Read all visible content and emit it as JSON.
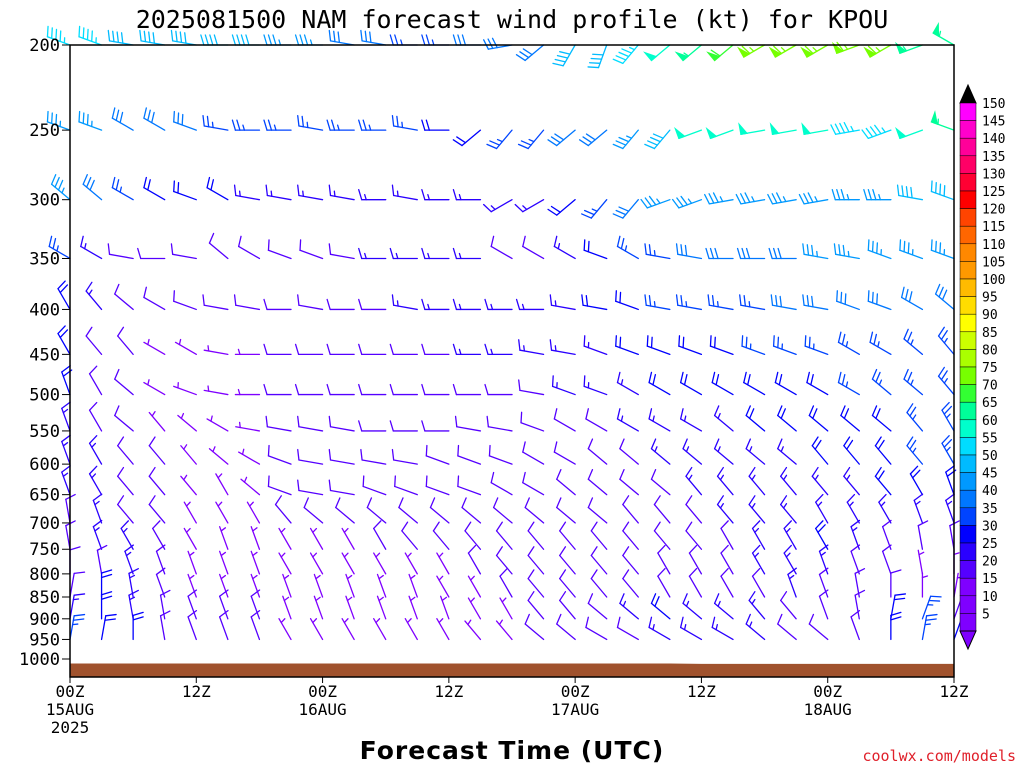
{
  "title": "2025081500 NAM forecast wind profile (kt) for KPOU",
  "xlabel": "Forecast Time (UTC)",
  "credit": "coolwx.com/models",
  "colors": {
    "ground": "#a0522d",
    "frame": "#000000",
    "scale": [
      "#7f00ff",
      "#5500ff",
      "#2a00ff",
      "#0000ff",
      "#0044ff",
      "#0077ff",
      "#0099ff",
      "#00bbff",
      "#00ddff",
      "#00ffcc",
      "#00ff99",
      "#33ff33",
      "#77ff00",
      "#aaff00",
      "#ccff00",
      "#ffff00",
      "#ffdd00",
      "#ffbb00",
      "#ff9900",
      "#ff8800",
      "#ff6600",
      "#ff4400",
      "#ff0000",
      "#ff0033",
      "#ff0066",
      "#ff0099",
      "#ff00cc",
      "#ff00ff"
    ]
  },
  "chart_data": {
    "type": "wind_barbs",
    "units": "kt",
    "y_axis": {
      "label": "",
      "scale": "log-pressure",
      "range": [
        1000,
        200
      ],
      "ticks": [
        "200",
        "250",
        "300",
        "350",
        "400",
        "450",
        "500",
        "550",
        "600",
        "650",
        "700",
        "750",
        "800",
        "850",
        "900",
        "950",
        "1000"
      ]
    },
    "x_axis": {
      "range_hours": [
        0,
        84
      ],
      "ticks": [
        {
          "hour": 0,
          "lines": [
            "00Z",
            "15AUG",
            "2025"
          ]
        },
        {
          "hour": 12,
          "lines": [
            "12Z"
          ]
        },
        {
          "hour": 24,
          "lines": [
            "00Z",
            "16AUG"
          ]
        },
        {
          "hour": 36,
          "lines": [
            "12Z"
          ]
        },
        {
          "hour": 48,
          "lines": [
            "00Z",
            "17AUG"
          ]
        },
        {
          "hour": 60,
          "lines": [
            "12Z"
          ]
        },
        {
          "hour": 72,
          "lines": [
            "00Z",
            "18AUG"
          ]
        },
        {
          "hour": 84,
          "lines": [
            "12Z"
          ]
        }
      ]
    },
    "colorbar": {
      "labels": [
        "150",
        "145",
        "140",
        "135",
        "130",
        "125",
        "120",
        "115",
        "110",
        "105",
        "100",
        "95",
        "90",
        "85",
        "80",
        "75",
        "70",
        "65",
        "60",
        "55",
        "50",
        "45",
        "40",
        "35",
        "30",
        "25",
        "20",
        "15",
        "10",
        "5"
      ]
    },
    "barb_hours": [
      0,
      3,
      6,
      9,
      12,
      15,
      18,
      21,
      24,
      27,
      30,
      33,
      36,
      39,
      42,
      45,
      48,
      51,
      54,
      57,
      60,
      63,
      66,
      69,
      72,
      75,
      78,
      81,
      84
    ],
    "barb_levels_hpa": [
      200,
      250,
      300,
      350,
      400,
      450,
      500,
      550,
      600,
      650,
      700,
      750,
      800,
      850,
      900,
      950
    ],
    "speed_kt": [
      [
        45,
        45,
        40,
        40,
        40,
        40,
        40,
        35,
        35,
        30,
        30,
        25,
        25,
        30,
        30,
        30,
        40,
        40,
        45,
        50,
        55,
        60,
        65,
        65,
        65,
        65,
        65,
        55,
        55
      ],
      [
        35,
        35,
        30,
        30,
        30,
        25,
        25,
        25,
        25,
        25,
        25,
        25,
        20,
        20,
        25,
        25,
        30,
        30,
        35,
        40,
        50,
        50,
        50,
        50,
        50,
        45,
        45,
        50,
        55
      ],
      [
        35,
        30,
        25,
        20,
        20,
        20,
        15,
        15,
        15,
        15,
        15,
        15,
        15,
        15,
        15,
        15,
        20,
        25,
        30,
        35,
        35,
        35,
        35,
        35,
        35,
        35,
        35,
        40,
        40
      ],
      [
        25,
        15,
        10,
        10,
        10,
        10,
        10,
        10,
        10,
        10,
        15,
        15,
        15,
        15,
        10,
        10,
        15,
        20,
        25,
        25,
        30,
        30,
        30,
        30,
        35,
        35,
        35,
        35,
        35
      ],
      [
        20,
        15,
        10,
        10,
        10,
        10,
        10,
        10,
        10,
        10,
        10,
        15,
        15,
        15,
        15,
        15,
        15,
        20,
        20,
        25,
        25,
        25,
        25,
        30,
        30,
        30,
        30,
        30,
        30
      ],
      [
        20,
        10,
        10,
        5,
        5,
        5,
        5,
        10,
        10,
        10,
        10,
        10,
        10,
        15,
        15,
        15,
        15,
        15,
        20,
        20,
        20,
        20,
        25,
        25,
        25,
        25,
        25,
        25,
        25
      ],
      [
        20,
        10,
        10,
        5,
        5,
        5,
        5,
        10,
        10,
        10,
        10,
        10,
        10,
        10,
        10,
        10,
        15,
        15,
        15,
        20,
        20,
        20,
        20,
        20,
        20,
        25,
        25,
        25,
        25
      ],
      [
        15,
        10,
        10,
        5,
        5,
        5,
        5,
        10,
        10,
        10,
        10,
        10,
        10,
        10,
        10,
        10,
        10,
        10,
        15,
        15,
        15,
        15,
        20,
        20,
        20,
        20,
        20,
        25,
        25
      ],
      [
        15,
        15,
        10,
        10,
        5,
        5,
        5,
        10,
        10,
        10,
        10,
        10,
        10,
        10,
        10,
        10,
        10,
        10,
        10,
        15,
        15,
        15,
        15,
        15,
        20,
        20,
        20,
        25,
        25
      ],
      [
        15,
        15,
        10,
        10,
        5,
        5,
        5,
        10,
        10,
        10,
        10,
        10,
        10,
        10,
        10,
        10,
        10,
        10,
        10,
        10,
        15,
        15,
        15,
        15,
        15,
        15,
        20,
        20,
        20
      ],
      [
        10,
        15,
        10,
        10,
        5,
        5,
        5,
        10,
        10,
        10,
        10,
        10,
        10,
        10,
        10,
        10,
        10,
        10,
        10,
        10,
        10,
        15,
        15,
        15,
        15,
        15,
        15,
        15,
        15
      ],
      [
        10,
        15,
        15,
        10,
        5,
        5,
        5,
        5,
        5,
        5,
        10,
        10,
        10,
        10,
        10,
        10,
        10,
        10,
        10,
        10,
        10,
        10,
        15,
        15,
        20,
        15,
        10,
        10,
        10
      ],
      [
        10,
        10,
        15,
        10,
        5,
        5,
        5,
        5,
        5,
        5,
        5,
        5,
        5,
        10,
        10,
        10,
        10,
        10,
        10,
        10,
        10,
        10,
        15,
        15,
        15,
        10,
        10,
        5,
        5
      ],
      [
        10,
        20,
        15,
        10,
        5,
        5,
        5,
        5,
        5,
        5,
        5,
        5,
        5,
        5,
        10,
        10,
        10,
        10,
        10,
        10,
        10,
        10,
        10,
        15,
        10,
        10,
        10,
        5,
        5
      ],
      [
        15,
        20,
        15,
        10,
        10,
        10,
        10,
        5,
        5,
        5,
        5,
        5,
        5,
        5,
        5,
        10,
        10,
        10,
        15,
        20,
        15,
        15,
        15,
        10,
        10,
        10,
        20,
        25,
        10
      ],
      [
        25,
        20,
        20,
        10,
        10,
        10,
        10,
        5,
        5,
        5,
        5,
        5,
        5,
        5,
        5,
        10,
        10,
        10,
        10,
        15,
        15,
        15,
        15,
        10,
        10,
        10,
        20,
        25,
        20
      ]
    ],
    "direction_deg": [
      [
        290,
        290,
        280,
        280,
        280,
        270,
        270,
        270,
        270,
        280,
        280,
        270,
        270,
        270,
        260,
        230,
        210,
        200,
        220,
        230,
        230,
        230,
        240,
        240,
        240,
        250,
        240,
        250,
        300
      ],
      [
        290,
        290,
        300,
        300,
        290,
        280,
        270,
        270,
        280,
        270,
        270,
        280,
        270,
        230,
        220,
        220,
        230,
        230,
        220,
        220,
        250,
        250,
        260,
        260,
        260,
        260,
        250,
        250,
        290
      ],
      [
        310,
        310,
        300,
        300,
        290,
        300,
        280,
        280,
        280,
        280,
        270,
        280,
        270,
        270,
        240,
        240,
        230,
        220,
        220,
        250,
        250,
        260,
        260,
        260,
        260,
        270,
        270,
        280,
        290
      ],
      [
        300,
        300,
        280,
        270,
        280,
        310,
        300,
        290,
        290,
        280,
        270,
        270,
        270,
        270,
        300,
        300,
        300,
        290,
        300,
        280,
        280,
        270,
        270,
        270,
        280,
        280,
        290,
        290,
        290
      ],
      [
        330,
        320,
        310,
        300,
        290,
        280,
        280,
        270,
        280,
        270,
        270,
        280,
        270,
        270,
        270,
        270,
        280,
        280,
        290,
        280,
        280,
        280,
        280,
        280,
        280,
        290,
        290,
        300,
        310
      ],
      [
        330,
        320,
        320,
        300,
        300,
        280,
        270,
        270,
        270,
        270,
        270,
        270,
        270,
        270,
        270,
        280,
        280,
        290,
        290,
        290,
        290,
        290,
        290,
        290,
        290,
        300,
        300,
        310,
        320
      ],
      [
        340,
        330,
        310,
        300,
        290,
        280,
        270,
        270,
        270,
        270,
        270,
        270,
        270,
        270,
        270,
        280,
        290,
        290,
        300,
        300,
        300,
        300,
        300,
        300,
        300,
        300,
        310,
        310,
        320
      ],
      [
        340,
        330,
        310,
        320,
        310,
        300,
        280,
        280,
        280,
        280,
        270,
        270,
        270,
        280,
        280,
        290,
        300,
        300,
        300,
        300,
        300,
        310,
        310,
        310,
        310,
        310,
        310,
        320,
        330
      ],
      [
        340,
        330,
        320,
        320,
        320,
        310,
        300,
        290,
        280,
        280,
        280,
        280,
        290,
        290,
        290,
        300,
        300,
        310,
        310,
        310,
        310,
        310,
        310,
        310,
        320,
        320,
        320,
        320,
        330
      ],
      [
        340,
        330,
        320,
        320,
        320,
        330,
        310,
        290,
        280,
        280,
        290,
        290,
        290,
        290,
        300,
        300,
        310,
        310,
        310,
        310,
        320,
        320,
        320,
        320,
        320,
        320,
        320,
        330,
        340
      ],
      [
        350,
        340,
        320,
        320,
        330,
        330,
        330,
        320,
        310,
        310,
        310,
        310,
        310,
        310,
        310,
        310,
        310,
        310,
        320,
        320,
        320,
        320,
        320,
        320,
        330,
        330,
        330,
        340,
        340
      ],
      [
        350,
        340,
        330,
        330,
        330,
        340,
        340,
        330,
        330,
        330,
        330,
        320,
        320,
        320,
        320,
        320,
        320,
        320,
        320,
        320,
        320,
        330,
        330,
        330,
        330,
        340,
        340,
        350,
        350
      ],
      [
        0,
        350,
        340,
        340,
        340,
        340,
        340,
        330,
        330,
        330,
        330,
        330,
        330,
        330,
        320,
        320,
        320,
        320,
        320,
        330,
        330,
        330,
        330,
        330,
        340,
        340,
        340,
        350,
        0
      ],
      [
        10,
        0,
        350,
        340,
        340,
        340,
        340,
        340,
        340,
        340,
        340,
        340,
        330,
        330,
        330,
        320,
        320,
        320,
        320,
        330,
        330,
        330,
        330,
        340,
        340,
        350,
        0,
        0,
        10
      ],
      [
        10,
        0,
        350,
        350,
        340,
        340,
        340,
        340,
        340,
        340,
        340,
        340,
        340,
        330,
        330,
        320,
        320,
        310,
        310,
        310,
        310,
        310,
        320,
        320,
        340,
        350,
        10,
        20,
        20
      ],
      [
        10,
        10,
        0,
        350,
        340,
        340,
        340,
        330,
        330,
        330,
        330,
        330,
        330,
        320,
        320,
        310,
        310,
        300,
        300,
        300,
        300,
        300,
        310,
        310,
        310,
        340,
        0,
        10,
        20
      ]
    ],
    "surface_pressure_hpa": [
      1012,
      1012,
      1012,
      1012,
      1012,
      1012,
      1012,
      1012,
      1012,
      1012,
      1012,
      1012,
      1012,
      1012,
      1012,
      1012,
      1012,
      1012,
      1012,
      1012,
      1013,
      1013,
      1013,
      1013,
      1013,
      1013,
      1013,
      1013,
      1013
    ]
  }
}
